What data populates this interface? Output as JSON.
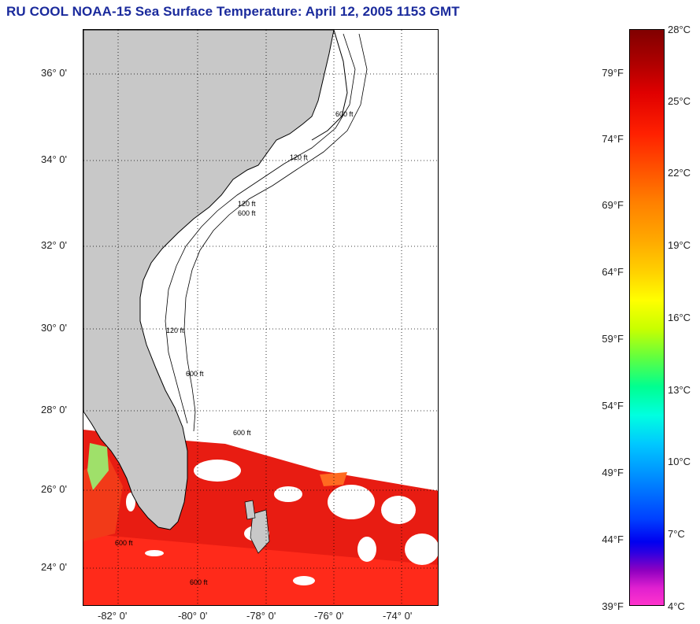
{
  "title": "RU COOL  NOAA-15  Sea Surface Temperature:  April 12, 2005 1153 GMT",
  "map": {
    "lat_labels": [
      "36° 0'",
      "34° 0'",
      "32° 0'",
      "30° 0'",
      "28° 0'",
      "26° 0'",
      "24° 0'"
    ],
    "lon_labels": [
      "-82° 0'",
      "-80° 0'",
      "-78° 0'",
      "-76° 0'",
      "-74° 0'"
    ],
    "isobath_labels": [
      "120 ft",
      "600 ft",
      "120 ft",
      "600 ft",
      "600 ft",
      "600 ft",
      "120 ft",
      "600 ft",
      "600 ft"
    ],
    "colors": {
      "land": "#c8c8c8",
      "cloud_or_nodata": "#ffffff",
      "sst_warm": "#e81c12",
      "sst_hot": "#ff2a1a",
      "sst_orange": "#ff6a20"
    }
  },
  "colorbar": {
    "celsius": [
      "28°C",
      "25°C",
      "22°C",
      "19°C",
      "16°C",
      "13°C",
      "10°C",
      "7°C",
      "4°C"
    ],
    "fahrenheit": [
      "79°F",
      "74°F",
      "69°F",
      "64°F",
      "59°F",
      "54°F",
      "49°F",
      "44°F",
      "39°F"
    ]
  }
}
